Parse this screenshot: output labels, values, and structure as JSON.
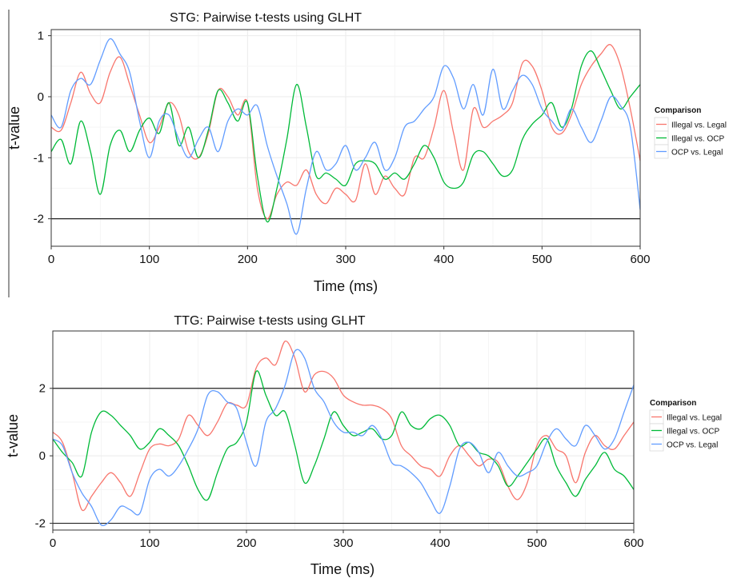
{
  "chart_data": [
    {
      "type": "line",
      "title": "STG: Pairwise t-tests using GLHT",
      "xlabel": "Time (ms)",
      "ylabel": "t-value",
      "xlim": [
        0,
        600
      ],
      "ylim": [
        -2.45,
        1.1
      ],
      "xticks": [
        0,
        100,
        200,
        300,
        400,
        500,
        600
      ],
      "yticks": [
        -2,
        -1,
        0,
        1
      ],
      "hlines": [
        -2
      ],
      "grid": true,
      "legend": {
        "title": "Comparison",
        "position": "right"
      },
      "x": [
        0,
        10,
        20,
        30,
        40,
        50,
        60,
        70,
        80,
        90,
        100,
        110,
        120,
        130,
        140,
        150,
        160,
        170,
        180,
        190,
        200,
        210,
        220,
        230,
        240,
        250,
        260,
        270,
        280,
        290,
        300,
        310,
        320,
        330,
        340,
        350,
        360,
        370,
        380,
        390,
        400,
        410,
        420,
        430,
        440,
        450,
        460,
        470,
        480,
        490,
        500,
        510,
        520,
        530,
        540,
        550,
        560,
        570,
        580,
        590,
        600
      ],
      "series": [
        {
          "name": "Illegal vs. Legal",
          "color": "#F8766D",
          "values": [
            -0.5,
            -0.55,
            -0.1,
            0.4,
            0.05,
            -0.1,
            0.4,
            0.65,
            0.2,
            -0.3,
            -0.75,
            -0.5,
            -0.1,
            -0.3,
            -0.9,
            -1.0,
            -0.6,
            0.1,
            0.0,
            -0.3,
            -0.1,
            -1.5,
            -2.0,
            -1.6,
            -1.4,
            -1.45,
            -1.2,
            -1.6,
            -1.75,
            -1.5,
            -1.6,
            -1.7,
            -1.1,
            -1.6,
            -1.3,
            -1.5,
            -1.6,
            -1.0,
            -1.0,
            -0.5,
            0.1,
            -0.6,
            -1.2,
            -0.2,
            -0.5,
            -0.4,
            -0.3,
            -0.1,
            0.55,
            0.5,
            0.1,
            -0.5,
            -0.6,
            -0.3,
            0.2,
            0.5,
            0.7,
            0.85,
            0.5,
            -0.2,
            -1.05
          ]
        },
        {
          "name": "Illegal vs. OCP",
          "color": "#00BA38",
          "values": [
            -0.9,
            -0.7,
            -1.1,
            -0.4,
            -0.9,
            -1.6,
            -0.8,
            -0.55,
            -0.9,
            -0.55,
            -0.35,
            -0.6,
            -0.1,
            -0.8,
            -0.5,
            -1.0,
            -0.55,
            0.1,
            -0.1,
            -0.4,
            -0.1,
            -1.3,
            -2.05,
            -1.5,
            -0.7,
            0.2,
            -0.5,
            -1.3,
            -1.25,
            -1.35,
            -1.45,
            -1.1,
            -1.05,
            -1.1,
            -1.35,
            -1.25,
            -1.35,
            -1.1,
            -0.8,
            -1.0,
            -1.4,
            -1.5,
            -1.4,
            -0.95,
            -0.9,
            -1.1,
            -1.3,
            -1.2,
            -0.7,
            -0.45,
            -0.3,
            -0.1,
            -0.5,
            -0.2,
            0.5,
            0.75,
            0.45,
            0.1,
            -0.2,
            0.0,
            0.2
          ]
        },
        {
          "name": "OCP vs. Legal",
          "color": "#619CFF",
          "values": [
            -0.3,
            -0.5,
            0.1,
            0.3,
            0.2,
            0.6,
            0.95,
            0.7,
            0.4,
            -0.4,
            -1.0,
            -0.4,
            -0.3,
            -0.7,
            -1.0,
            -0.7,
            -0.5,
            -0.9,
            -0.4,
            -0.2,
            -0.3,
            -0.15,
            -0.8,
            -1.3,
            -1.75,
            -2.25,
            -1.5,
            -0.9,
            -1.2,
            -1.1,
            -0.8,
            -1.2,
            -1.0,
            -0.75,
            -1.2,
            -1.0,
            -0.5,
            -0.4,
            -0.2,
            0.0,
            0.5,
            0.3,
            -0.2,
            0.2,
            -0.3,
            0.45,
            -0.2,
            0.1,
            0.35,
            0.2,
            -0.2,
            -0.4,
            -0.55,
            -0.2,
            -0.5,
            -0.75,
            -0.4,
            0.0,
            -0.15,
            -0.5,
            -1.85
          ]
        }
      ]
    },
    {
      "type": "line",
      "title": "TTG: Pairwise t-tests using GLHT",
      "xlabel": "Time (ms)",
      "ylabel": "t-value",
      "xlim": [
        0,
        600
      ],
      "ylim": [
        -2.2,
        3.7
      ],
      "xticks": [
        0,
        100,
        200,
        300,
        400,
        500,
        600
      ],
      "yticks": [
        -2,
        0,
        2
      ],
      "hlines": [
        -2,
        2
      ],
      "grid": true,
      "legend": {
        "title": "Comparison",
        "position": "right"
      },
      "x": [
        0,
        10,
        20,
        30,
        40,
        50,
        60,
        70,
        80,
        90,
        100,
        110,
        120,
        130,
        140,
        150,
        160,
        170,
        180,
        190,
        200,
        210,
        220,
        230,
        240,
        250,
        260,
        270,
        280,
        290,
        300,
        310,
        320,
        330,
        340,
        350,
        360,
        370,
        380,
        390,
        400,
        410,
        420,
        430,
        440,
        450,
        460,
        470,
        480,
        490,
        500,
        510,
        520,
        530,
        540,
        550,
        560,
        570,
        580,
        590,
        600
      ],
      "series": [
        {
          "name": "Illegal vs. Legal",
          "color": "#F8766D",
          "values": [
            0.7,
            0.4,
            -0.5,
            -1.6,
            -1.2,
            -0.8,
            -0.5,
            -0.8,
            -1.2,
            -0.5,
            0.2,
            0.35,
            0.3,
            0.5,
            1.2,
            0.9,
            0.6,
            1.0,
            1.55,
            1.5,
            1.5,
            2.6,
            2.9,
            2.7,
            3.4,
            2.9,
            1.9,
            2.4,
            2.5,
            2.3,
            1.8,
            1.6,
            1.5,
            1.5,
            1.4,
            1.1,
            0.3,
            0.0,
            -0.3,
            -0.4,
            -0.6,
            0.0,
            0.3,
            0.0,
            -0.3,
            -0.1,
            -0.2,
            -0.9,
            -1.3,
            -0.8,
            0.3,
            0.6,
            0.2,
            0.0,
            -0.8,
            0.1,
            0.6,
            0.3,
            0.2,
            0.6,
            1.0
          ]
        },
        {
          "name": "Illegal vs. OCP",
          "color": "#00BA38",
          "values": [
            0.5,
            0.1,
            -0.2,
            -0.6,
            0.7,
            1.3,
            1.2,
            0.9,
            0.6,
            0.2,
            0.4,
            0.8,
            0.6,
            0.3,
            -0.3,
            -1.0,
            -1.3,
            -0.5,
            0.2,
            0.4,
            1.0,
            2.5,
            1.8,
            1.2,
            1.3,
            0.3,
            -0.8,
            -0.3,
            0.5,
            1.3,
            0.9,
            0.6,
            0.7,
            0.8,
            0.5,
            0.6,
            1.3,
            0.9,
            0.8,
            1.1,
            1.2,
            0.9,
            0.3,
            0.4,
            0.1,
            0.0,
            -0.3,
            -0.9,
            -0.6,
            -0.2,
            0.2,
            0.5,
            -0.3,
            -0.8,
            -1.2,
            -0.7,
            -0.3,
            0.1,
            -0.4,
            -0.6,
            -1.0
          ]
        },
        {
          "name": "OCP vs. Legal",
          "color": "#619CFF",
          "values": [
            0.5,
            0.3,
            -0.5,
            -1.1,
            -1.5,
            -2.05,
            -1.9,
            -1.5,
            -1.6,
            -1.7,
            -0.7,
            -0.4,
            -0.6,
            -0.3,
            0.2,
            0.8,
            1.8,
            1.9,
            1.6,
            1.4,
            0.4,
            -0.3,
            1.0,
            1.4,
            2.1,
            3.1,
            2.9,
            2.0,
            1.6,
            1.0,
            0.7,
            0.7,
            0.6,
            0.9,
            0.5,
            -0.2,
            -0.3,
            -0.5,
            -0.8,
            -1.3,
            -1.7,
            -0.9,
            0.2,
            0.4,
            0.1,
            -0.5,
            0.1,
            -0.3,
            -0.6,
            -0.5,
            -0.3,
            0.4,
            0.8,
            0.5,
            0.3,
            0.9,
            0.6,
            0.2,
            0.5,
            1.3,
            2.1
          ]
        }
      ]
    }
  ]
}
